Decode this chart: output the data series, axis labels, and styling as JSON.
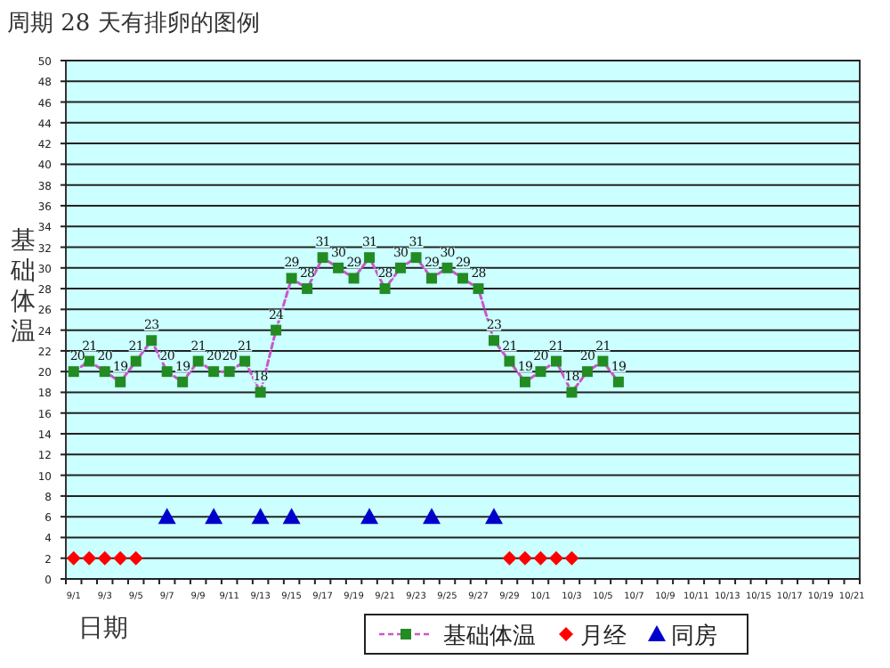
{
  "chart_data": {
    "type": "line",
    "title": "周期 28 天有排卵的图例",
    "xlabel": "日期",
    "ylabel": "基础体温",
    "categories": [
      "9/1",
      null,
      "9/3",
      null,
      "9/5",
      null,
      "9/7",
      null,
      "9/9",
      null,
      "9/11",
      null,
      "9/13",
      null,
      "9/15",
      null,
      "9/17",
      null,
      "9/19",
      null,
      "9/21",
      null,
      "9/23",
      null,
      "9/25",
      null,
      "9/27",
      null,
      "9/29",
      null,
      "10/1",
      null,
      "10/3",
      null,
      "10/5",
      null,
      "10/7",
      null,
      "10/9",
      null,
      "10/11",
      null,
      "10/13",
      null,
      "10/15",
      null,
      "10/17",
      null,
      "10/19",
      null,
      "10/21"
    ],
    "series": [
      {
        "name": "基础体温",
        "color": "#228b22",
        "line_style": "dashed",
        "marker": "square",
        "data_labels": true,
        "values": [
          20,
          21,
          20,
          19,
          21,
          23,
          20,
          19,
          21,
          20,
          20,
          21,
          18,
          24,
          29,
          28,
          31,
          30,
          29,
          31,
          28,
          30,
          31,
          29,
          30,
          29,
          28,
          23,
          21,
          19,
          20,
          21,
          18,
          20,
          21,
          19,
          null,
          null,
          null,
          null,
          null,
          null,
          null,
          null,
          null,
          null,
          null,
          null,
          null,
          null,
          null
        ]
      },
      {
        "name": "月经",
        "type": "scatter",
        "color": "#ff0000",
        "marker": "diamond",
        "values": [
          2,
          2,
          2,
          2,
          2,
          null,
          null,
          null,
          null,
          null,
          null,
          null,
          null,
          null,
          null,
          null,
          null,
          null,
          null,
          null,
          null,
          null,
          null,
          null,
          null,
          null,
          null,
          null,
          2,
          2,
          2,
          2,
          2,
          null,
          null,
          null,
          null,
          null,
          null,
          null,
          null,
          null,
          null,
          null,
          null,
          null,
          null,
          null,
          null,
          null,
          null
        ]
      },
      {
        "name": "同房",
        "type": "scatter",
        "color": "#0000cc",
        "marker": "triangle",
        "values": [
          null,
          null,
          null,
          null,
          null,
          null,
          6,
          null,
          null,
          6,
          null,
          null,
          6,
          null,
          6,
          null,
          null,
          null,
          null,
          6,
          null,
          null,
          null,
          6,
          null,
          null,
          null,
          6,
          null,
          null,
          null,
          null,
          null,
          null,
          null,
          null,
          null,
          null,
          null,
          null,
          null,
          null,
          null,
          null,
          null,
          null,
          null,
          null,
          null,
          null,
          null
        ]
      }
    ],
    "ylim": [
      0,
      50
    ],
    "yticks": [
      0,
      2,
      4,
      6,
      8,
      10,
      12,
      14,
      16,
      18,
      20,
      22,
      24,
      26,
      28,
      30,
      32,
      34,
      36,
      38,
      40,
      42,
      44,
      46,
      48,
      50
    ],
    "grid": "y",
    "legend": "bottom"
  }
}
